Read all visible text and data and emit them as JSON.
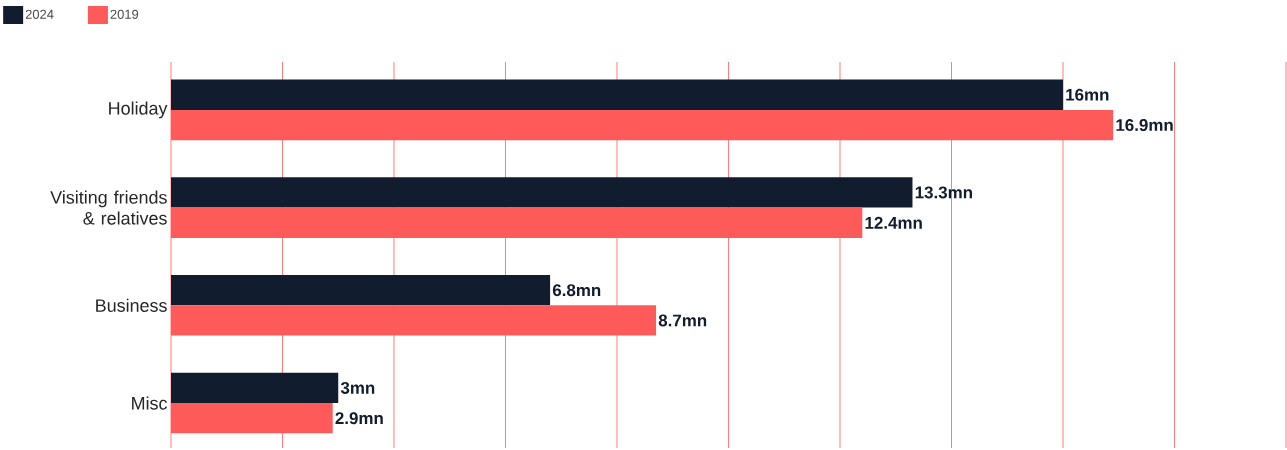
{
  "chart_data": {
    "type": "bar",
    "orientation": "horizontal",
    "categories": [
      "Holiday",
      "Visiting friends & relatives",
      "Business",
      "Misc"
    ],
    "series": [
      {
        "name": "2024",
        "color": "#111d2e",
        "values": [
          16,
          13.3,
          6.8,
          3
        ],
        "value_labels": [
          "16mn",
          "13.3mn",
          "6.8mn",
          "3mn"
        ]
      },
      {
        "name": "2019",
        "color": "#ff5a5a",
        "values": [
          16.9,
          12.4,
          8.7,
          2.9
        ],
        "value_labels": [
          "16.9mn",
          "12.4mn",
          "8.7mn",
          "2.9mn"
        ]
      }
    ],
    "xlim": [
      0,
      20
    ],
    "xticks": [
      {
        "value": 0,
        "label": null
      },
      {
        "value": 2,
        "label": null
      },
      {
        "value": 4,
        "label": null
      },
      {
        "value": 6,
        "label": null
      },
      {
        "value": 8,
        "label": null
      },
      {
        "value": 10,
        "label": null
      },
      {
        "value": 12,
        "label": null
      },
      {
        "value": 14,
        "label": null
      },
      {
        "value": 16,
        "label": null
      },
      {
        "value": 18,
        "label": null
      },
      {
        "value": 20,
        "label": null
      }
    ],
    "grid": "x",
    "legend": "top left",
    "tick_labels": "y"
  }
}
